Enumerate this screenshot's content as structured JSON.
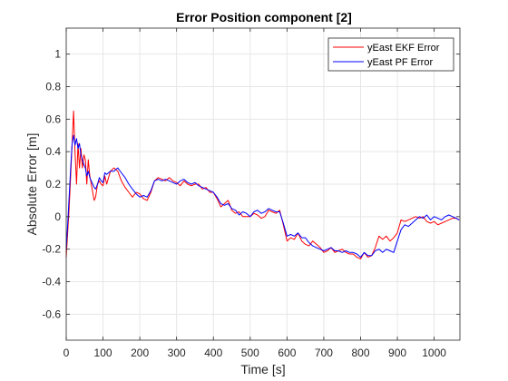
{
  "chart_data": {
    "type": "line",
    "title": "Error Position component [2]",
    "xlabel": "Time [s]",
    "ylabel": "Absolute Error [m]",
    "xlim": [
      0,
      1070
    ],
    "ylim": [
      -0.76,
      1.16
    ],
    "xticks": [
      0,
      100,
      200,
      300,
      400,
      500,
      600,
      700,
      800,
      900,
      1000
    ],
    "yticks": [
      -0.6,
      -0.4,
      -0.2,
      0,
      0.2,
      0.4,
      0.6,
      0.8,
      1
    ],
    "xtick_labels": [
      "0",
      "100",
      "200",
      "300",
      "400",
      "500",
      "600",
      "700",
      "800",
      "900",
      "1000"
    ],
    "ytick_labels": [
      "-0.6",
      "-0.4",
      "-0.2",
      "0",
      "0.2",
      "0.4",
      "0.6",
      "0.8",
      "1"
    ],
    "grid": true,
    "legend_position": "top-right",
    "series": [
      {
        "name": "yEast EKF Error",
        "color": "#ff0000",
        "x": [
          0,
          4,
          8,
          12,
          16,
          20,
          24,
          28,
          32,
          36,
          40,
          44,
          48,
          52,
          56,
          60,
          64,
          68,
          72,
          76,
          80,
          85,
          90,
          95,
          100,
          105,
          110,
          120,
          130,
          140,
          150,
          160,
          170,
          180,
          190,
          200,
          210,
          220,
          230,
          240,
          250,
          260,
          270,
          280,
          290,
          300,
          310,
          320,
          330,
          340,
          350,
          360,
          370,
          380,
          390,
          400,
          410,
          420,
          430,
          440,
          450,
          460,
          470,
          480,
          490,
          500,
          510,
          520,
          530,
          540,
          550,
          560,
          570,
          580,
          590,
          600,
          610,
          620,
          630,
          640,
          650,
          660,
          670,
          680,
          690,
          700,
          710,
          720,
          730,
          740,
          750,
          760,
          770,
          780,
          790,
          800,
          810,
          820,
          830,
          840,
          850,
          860,
          870,
          880,
          890,
          900,
          910,
          920,
          930,
          940,
          950,
          960,
          970,
          980,
          990,
          1000,
          1010,
          1020,
          1030,
          1040,
          1050,
          1060,
          1068
        ],
        "y": [
          -0.25,
          -0.1,
          0.05,
          0.25,
          0.45,
          0.65,
          0.4,
          0.2,
          0.45,
          0.3,
          0.42,
          0.3,
          0.38,
          0.35,
          0.2,
          0.35,
          0.25,
          0.2,
          0.15,
          0.1,
          0.12,
          0.2,
          0.22,
          0.2,
          0.19,
          0.25,
          0.2,
          0.28,
          0.3,
          0.28,
          0.22,
          0.18,
          0.15,
          0.12,
          0.15,
          0.14,
          0.11,
          0.1,
          0.15,
          0.22,
          0.24,
          0.23,
          0.22,
          0.24,
          0.22,
          0.21,
          0.19,
          0.22,
          0.2,
          0.19,
          0.2,
          0.2,
          0.17,
          0.18,
          0.15,
          0.15,
          0.11,
          0.06,
          0.08,
          0.1,
          0.04,
          0.02,
          0.03,
          0.0,
          0.0,
          0.0,
          0.02,
          0.01,
          -0.01,
          0.0,
          0.04,
          0.03,
          0.02,
          0.04,
          -0.05,
          -0.15,
          -0.13,
          -0.14,
          -0.1,
          -0.15,
          -0.17,
          -0.18,
          -0.15,
          -0.17,
          -0.19,
          -0.22,
          -0.21,
          -0.19,
          -0.22,
          -0.21,
          -0.2,
          -0.22,
          -0.23,
          -0.23,
          -0.25,
          -0.26,
          -0.22,
          -0.25,
          -0.24,
          -0.19,
          -0.12,
          -0.14,
          -0.12,
          -0.15,
          -0.13,
          -0.1,
          -0.02,
          -0.03,
          -0.02,
          -0.01,
          0.0,
          -0.01,
          0.0,
          -0.03,
          -0.04,
          -0.03,
          -0.05,
          -0.04,
          -0.03,
          -0.02,
          -0.01,
          -0.01,
          -0.02
        ]
      },
      {
        "name": "yEast PF Error",
        "color": "#0000ff",
        "x": [
          0,
          4,
          8,
          12,
          16,
          20,
          24,
          28,
          32,
          36,
          40,
          44,
          48,
          52,
          56,
          60,
          64,
          68,
          72,
          76,
          80,
          85,
          90,
          95,
          100,
          105,
          110,
          120,
          130,
          140,
          150,
          160,
          170,
          180,
          190,
          200,
          210,
          220,
          230,
          240,
          250,
          260,
          270,
          280,
          290,
          300,
          310,
          320,
          330,
          340,
          350,
          360,
          370,
          380,
          390,
          400,
          410,
          420,
          430,
          440,
          450,
          460,
          470,
          480,
          490,
          500,
          510,
          520,
          530,
          540,
          550,
          560,
          570,
          580,
          590,
          600,
          610,
          620,
          630,
          640,
          650,
          660,
          670,
          680,
          690,
          700,
          710,
          720,
          730,
          740,
          750,
          760,
          770,
          780,
          790,
          800,
          810,
          820,
          830,
          840,
          850,
          860,
          870,
          880,
          890,
          900,
          910,
          920,
          930,
          940,
          950,
          960,
          970,
          980,
          990,
          1000,
          1010,
          1020,
          1030,
          1040,
          1050,
          1060,
          1068
        ],
        "y": [
          -0.2,
          -0.05,
          0.12,
          0.3,
          0.45,
          0.5,
          0.44,
          0.48,
          0.42,
          0.45,
          0.38,
          0.35,
          0.32,
          0.3,
          0.25,
          0.28,
          0.24,
          0.22,
          0.2,
          0.18,
          0.17,
          0.2,
          0.24,
          0.22,
          0.21,
          0.27,
          0.26,
          0.28,
          0.28,
          0.3,
          0.27,
          0.24,
          0.2,
          0.17,
          0.14,
          0.12,
          0.13,
          0.12,
          0.16,
          0.22,
          0.23,
          0.22,
          0.23,
          0.22,
          0.21,
          0.2,
          0.22,
          0.23,
          0.21,
          0.2,
          0.21,
          0.19,
          0.18,
          0.17,
          0.16,
          0.15,
          0.12,
          0.08,
          0.07,
          0.08,
          0.05,
          0.04,
          0.01,
          0.03,
          0.02,
          0.0,
          0.03,
          0.04,
          0.02,
          0.03,
          0.05,
          0.04,
          0.03,
          0.03,
          -0.04,
          -0.12,
          -0.11,
          -0.12,
          -0.1,
          -0.13,
          -0.13,
          -0.16,
          -0.18,
          -0.19,
          -0.2,
          -0.21,
          -0.2,
          -0.19,
          -0.21,
          -0.21,
          -0.22,
          -0.21,
          -0.22,
          -0.22,
          -0.23,
          -0.25,
          -0.22,
          -0.24,
          -0.24,
          -0.21,
          -0.2,
          -0.22,
          -0.2,
          -0.21,
          -0.22,
          -0.15,
          -0.08,
          -0.05,
          -0.06,
          -0.04,
          -0.02,
          0.0,
          -0.01,
          0.01,
          -0.02,
          0.0,
          -0.01,
          -0.02,
          0.0,
          0.01,
          0.0,
          -0.01,
          -0.02
        ]
      }
    ]
  }
}
